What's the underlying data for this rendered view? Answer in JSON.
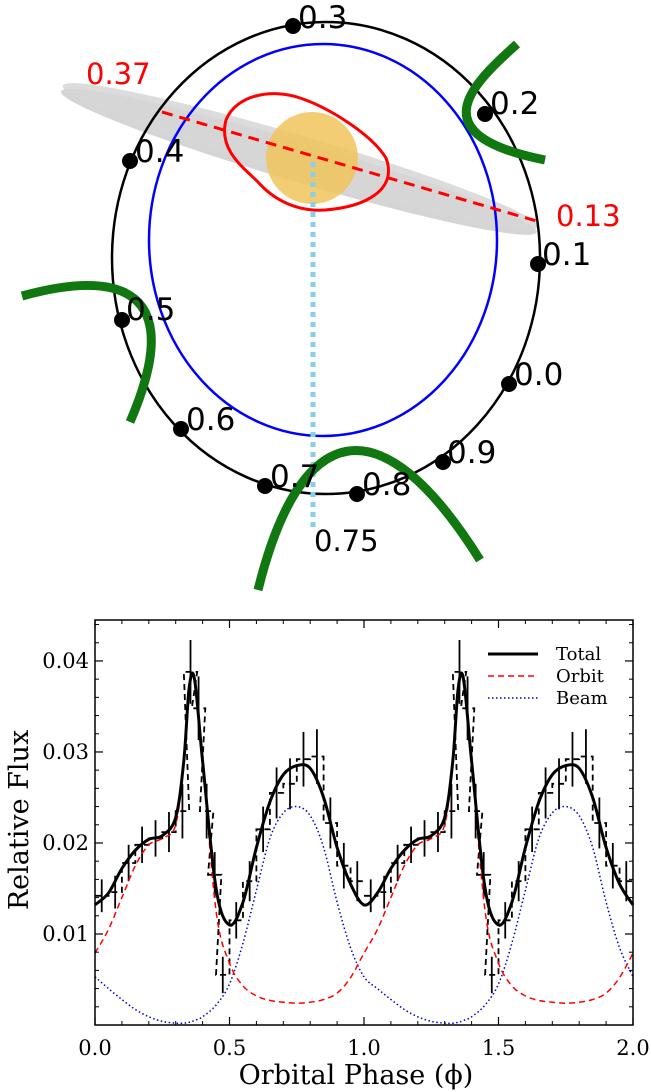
{
  "diagram": {
    "phase_labels": [
      "0.3",
      "0.2",
      "0.4",
      "0.1",
      "0.5",
      "0.0",
      "0.6",
      "0.9",
      "0.7",
      "0.8"
    ],
    "periastron_label": "0.37",
    "apastron_label": "0.13",
    "inferior_conjunction_label": "0.75",
    "colors": {
      "orbit": "#000000",
      "pulsar_orbit": "#0000ff",
      "disk_contour": "#ff0000",
      "star": "#f0c45a",
      "disk": "#c8c8c8",
      "shock": "#117711",
      "line_of_sight": "#87ceeb"
    }
  },
  "chart_data": {
    "type": "line",
    "xlabel": "Orbital Phase (ϕ)",
    "ylabel": "Relative Flux",
    "xlim": [
      0.0,
      2.0
    ],
    "ylim": [
      0.0,
      0.0445
    ],
    "xticks": [
      "0.0",
      "0.5",
      "1.0",
      "1.5",
      "2.0"
    ],
    "yticks": [
      "0.01",
      "0.02",
      "0.03",
      "0.04"
    ],
    "ytick_values": [
      0.01,
      0.02,
      0.03,
      0.04
    ],
    "legend": {
      "position": "top-right",
      "entries": [
        "Total",
        "Orbit",
        "Beam"
      ]
    },
    "model_x": [
      0.0,
      0.05,
      0.1,
      0.15,
      0.2,
      0.25,
      0.3,
      0.33,
      0.35,
      0.37,
      0.4,
      0.45,
      0.5,
      0.55,
      0.6,
      0.65,
      0.7,
      0.75,
      0.8,
      0.85,
      0.9,
      0.95,
      1.0
    ],
    "series": [
      {
        "name": "Total",
        "color": "#000000",
        "style": "solid",
        "values": [
          0.0132,
          0.0145,
          0.0172,
          0.0192,
          0.0204,
          0.0208,
          0.0228,
          0.029,
          0.037,
          0.038,
          0.029,
          0.015,
          0.011,
          0.0135,
          0.0195,
          0.0245,
          0.0275,
          0.0285,
          0.0282,
          0.025,
          0.0195,
          0.0155,
          0.0132
        ]
      },
      {
        "name": "Orbit",
        "color": "#ff0000",
        "style": "dashed",
        "values": [
          0.0079,
          0.0105,
          0.014,
          0.0175,
          0.0198,
          0.0205,
          0.022,
          0.029,
          0.037,
          0.038,
          0.029,
          0.0125,
          0.0068,
          0.0043,
          0.0032,
          0.0027,
          0.0025,
          0.0024,
          0.0025,
          0.0028,
          0.0035,
          0.0052,
          0.0079
        ]
      },
      {
        "name": "Beam",
        "color": "#0000cc",
        "style": "dotted",
        "values": [
          0.0053,
          0.004,
          0.0028,
          0.0017,
          0.0009,
          0.0004,
          0.0002,
          0.0002,
          0.0003,
          0.0005,
          0.0009,
          0.0022,
          0.0045,
          0.009,
          0.0148,
          0.0205,
          0.0233,
          0.024,
          0.023,
          0.0195,
          0.0135,
          0.0085,
          0.0053
        ]
      }
    ],
    "data_points": [
      {
        "x": 0.025,
        "y": 0.0142,
        "err": 0.0018
      },
      {
        "x": 0.075,
        "y": 0.0146,
        "err": 0.0018
      },
      {
        "x": 0.125,
        "y": 0.0178,
        "err": 0.002
      },
      {
        "x": 0.175,
        "y": 0.0198,
        "err": 0.002
      },
      {
        "x": 0.225,
        "y": 0.0205,
        "err": 0.002
      },
      {
        "x": 0.275,
        "y": 0.0212,
        "err": 0.0022
      },
      {
        "x": 0.325,
        "y": 0.0235,
        "err": 0.003
      },
      {
        "x": 0.355,
        "y": 0.0388,
        "err": 0.0035
      },
      {
        "x": 0.385,
        "y": 0.0348,
        "err": 0.0035
      },
      {
        "x": 0.415,
        "y": 0.0235,
        "err": 0.003
      },
      {
        "x": 0.445,
        "y": 0.0165,
        "err": 0.0025
      },
      {
        "x": 0.475,
        "y": 0.0055,
        "err": 0.002
      },
      {
        "x": 0.525,
        "y": 0.0115,
        "err": 0.002
      },
      {
        "x": 0.575,
        "y": 0.0158,
        "err": 0.0022
      },
      {
        "x": 0.625,
        "y": 0.0215,
        "err": 0.0025
      },
      {
        "x": 0.675,
        "y": 0.0255,
        "err": 0.0028
      },
      {
        "x": 0.725,
        "y": 0.0265,
        "err": 0.0028
      },
      {
        "x": 0.775,
        "y": 0.0292,
        "err": 0.003
      },
      {
        "x": 0.825,
        "y": 0.0295,
        "err": 0.003
      },
      {
        "x": 0.875,
        "y": 0.0222,
        "err": 0.0028
      },
      {
        "x": 0.925,
        "y": 0.0175,
        "err": 0.0025
      },
      {
        "x": 0.975,
        "y": 0.0158,
        "err": 0.0022
      }
    ]
  }
}
